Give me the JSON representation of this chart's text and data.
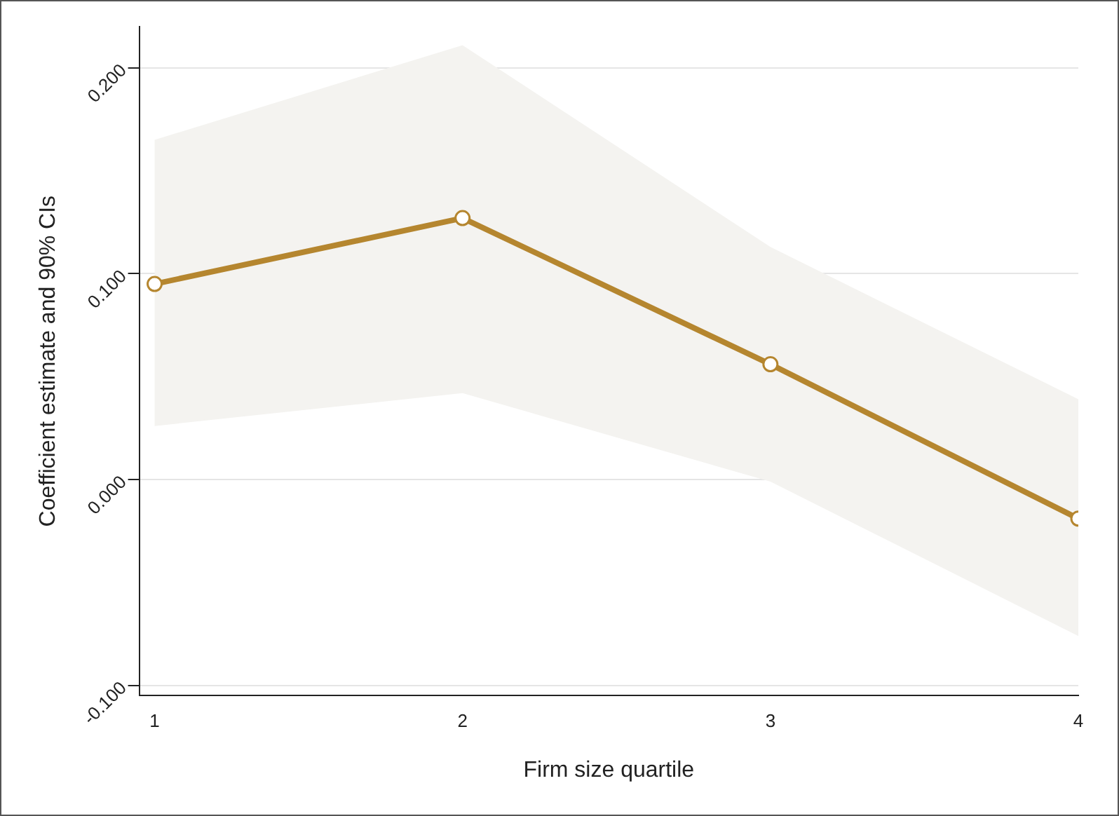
{
  "chart_data": {
    "type": "line",
    "xlabel": "Firm size quartile",
    "ylabel": "Coefficient estimate and 90% CIs",
    "x": [
      1,
      2,
      3,
      4
    ],
    "series": [
      {
        "color": "#b5862f",
        "values": [
          0.095,
          0.127,
          0.056,
          -0.019
        ],
        "lower": [
          0.026,
          0.042,
          -0.001,
          -0.076
        ],
        "upper": [
          0.165,
          0.211,
          0.113,
          0.039
        ]
      }
    ],
    "xlim": [
      0.95,
      4
    ],
    "xticks": [
      1,
      2,
      3,
      4
    ],
    "ylim": [
      -0.105,
      0.22
    ],
    "yticks": [
      {
        "value": -0.1,
        "label": "-0.100"
      },
      {
        "value": 0,
        "label": "0.000"
      },
      {
        "value": 0.1,
        "label": "0.100"
      },
      {
        "value": 0.2,
        "label": "0.200"
      }
    ],
    "grid": "y",
    "marker": "circle",
    "line_style": "solid",
    "legend": false
  }
}
